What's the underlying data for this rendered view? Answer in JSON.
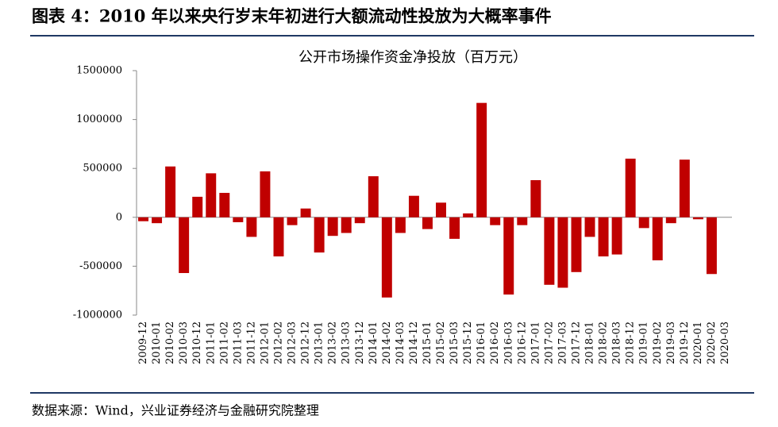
{
  "header": {
    "title": "图表 4：2010 年以来央行岁末年初进行大额流动性投放为大概率事件"
  },
  "chart_data": {
    "type": "bar",
    "title": "公开市场操作资金净投放（百万元）",
    "categories": [
      "2009-12",
      "2010-01",
      "2010-02",
      "2010-03",
      "2010-12",
      "2011-01",
      "2011-02",
      "2011-03",
      "2011-12",
      "2012-01",
      "2012-02",
      "2012-03",
      "2012-12",
      "2013-01",
      "2013-02",
      "2013-03",
      "2013-12",
      "2014-01",
      "2014-02",
      "2014-03",
      "2014-12",
      "2015-01",
      "2015-02",
      "2015-03",
      "2015-12",
      "2016-01",
      "2016-02",
      "2016-03",
      "2016-12",
      "2017-01",
      "2017-02",
      "2017-03",
      "2017-12",
      "2018-01",
      "2018-02",
      "2018-03",
      "2018-12",
      "2019-01",
      "2019-02",
      "2019-03",
      "2019-12",
      "2020-01",
      "2020-02",
      "2020-03"
    ],
    "values": [
      -40000,
      -60000,
      520000,
      -570000,
      210000,
      450000,
      250000,
      -50000,
      -200000,
      470000,
      -400000,
      -80000,
      90000,
      -360000,
      -190000,
      -160000,
      -60000,
      420000,
      -820000,
      -160000,
      220000,
      -120000,
      150000,
      -220000,
      40000,
      1170000,
      -80000,
      -790000,
      -80000,
      380000,
      -690000,
      -720000,
      -560000,
      -200000,
      -400000,
      -380000,
      600000,
      -110000,
      -440000,
      -60000,
      590000,
      -20000,
      -580000,
      null
    ],
    "color": "#c00000",
    "ylim": [
      -1000000,
      1500000
    ],
    "yticks": [
      -1000000,
      -500000,
      0,
      500000,
      1000000,
      1500000
    ]
  },
  "source": "数据来源：Wind，兴业证券经济与金融研究院整理"
}
